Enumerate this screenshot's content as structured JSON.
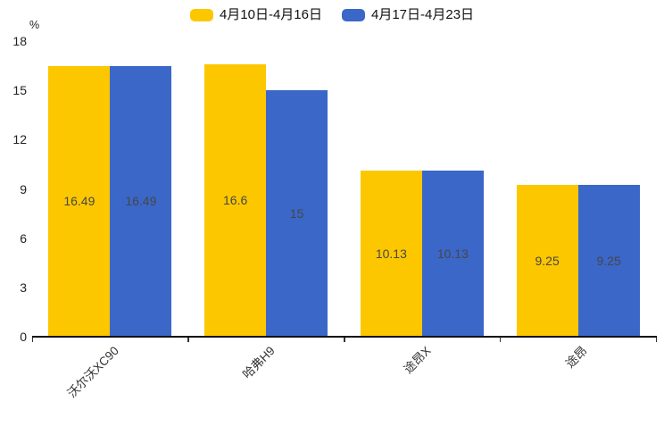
{
  "chart_data": {
    "type": "bar",
    "title": "",
    "xlabel": "",
    "ylabel": "%",
    "categories": [
      "沃尔沃XC90",
      "哈弗H9",
      "途昂X",
      "途昂"
    ],
    "series": [
      {
        "name": "4月10日-4月16日",
        "color": "#FDC700",
        "values": [
          16.49,
          16.6,
          10.13,
          9.25
        ],
        "value_labels": [
          "16.49",
          "16.6",
          "10.13",
          "9.25"
        ]
      },
      {
        "name": "4月17日-4月23日",
        "color": "#3A67C8",
        "values": [
          16.49,
          15,
          10.13,
          9.25
        ],
        "value_labels": [
          "16.49",
          "15",
          "10.13",
          "9.25"
        ]
      }
    ],
    "ylim": [
      0,
      18
    ],
    "yticks": [
      0,
      3,
      6,
      9,
      12,
      15,
      18
    ],
    "grid": false,
    "legend_position": "top",
    "background_color": "#ffffff",
    "value_label_color": "#474747"
  }
}
